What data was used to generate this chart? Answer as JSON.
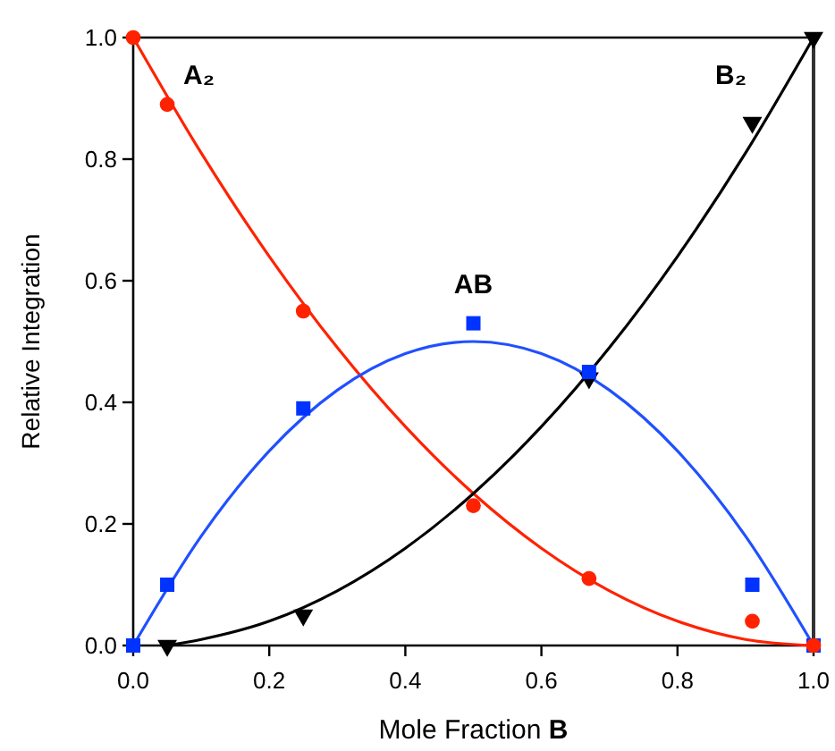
{
  "chart_data": {
    "type": "scatter",
    "xlabel": "Mole Fraction B",
    "ylabel": "Relative Integration",
    "xlim": [
      0,
      1
    ],
    "ylim": [
      0,
      1
    ],
    "xticks": [
      {
        "value": 0,
        "label": "0.0"
      },
      0.2,
      0.4,
      0.6,
      0.8,
      {
        "value": 1,
        "label": "1.0"
      }
    ],
    "yticks": [
      {
        "value": 0,
        "label": "0.0"
      },
      0.2,
      0.4,
      0.6,
      0.8,
      {
        "value": 1,
        "label": "1.0"
      }
    ],
    "series": [
      {
        "type": "line",
        "color": "#ff2200",
        "x": [
          0,
          0.1,
          0.2,
          0.3,
          0.4,
          0.5,
          0.6,
          0.7,
          0.8,
          0.9,
          1
        ],
        "values": [
          1,
          0.81,
          0.64,
          0.49,
          0.36,
          0.25,
          0.16,
          0.09,
          0.04,
          0.01,
          0
        ]
      },
      {
        "type": "line",
        "color": "#2050ff",
        "x": [
          0,
          0.1,
          0.2,
          0.3,
          0.4,
          0.5,
          0.6,
          0.7,
          0.8,
          0.9,
          1
        ],
        "values": [
          0,
          0.18,
          0.32,
          0.42,
          0.48,
          0.5,
          0.48,
          0.42,
          0.32,
          0.18,
          0
        ]
      },
      {
        "type": "line",
        "color": "#000000",
        "x": [
          0.05,
          0.1,
          0.2,
          0.3,
          0.4,
          0.5,
          0.6,
          0.7,
          0.8,
          0.9,
          1
        ],
        "values": [
          0,
          0.01,
          0.04,
          0.09,
          0.16,
          0.25,
          0.36,
          0.49,
          0.64,
          0.81,
          1
        ]
      },
      {
        "name": "B₂",
        "type": "scatter",
        "marker": "triangle",
        "color": "#000000",
        "x": [
          0.05,
          0.25,
          0.67,
          0.91,
          1
        ],
        "values": [
          0,
          0.05,
          0.44,
          0.86,
          1
        ]
      },
      {
        "name": "AB",
        "type": "scatter",
        "marker": "square",
        "color": "#0033ff",
        "x": [
          0,
          0.05,
          0.25,
          0.5,
          0.67,
          0.91,
          1
        ],
        "values": [
          0,
          0.1,
          0.39,
          0.53,
          0.45,
          0.1,
          0
        ]
      },
      {
        "name": "A₂",
        "type": "scatter",
        "marker": "circle",
        "color": "#ff2200",
        "x": [
          0,
          0.05,
          0.25,
          0.5,
          0.67,
          0.91,
          1
        ],
        "values": [
          1,
          0.89,
          0.55,
          0.23,
          0.11,
          0.04,
          0
        ]
      }
    ]
  }
}
